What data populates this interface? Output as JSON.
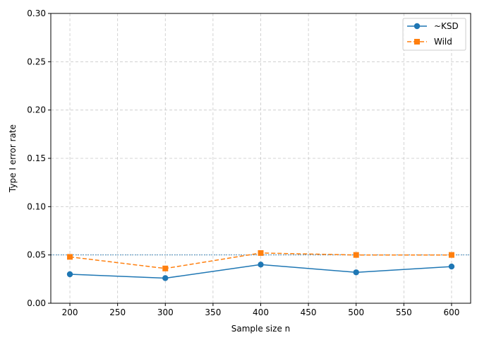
{
  "chart_data": {
    "type": "line",
    "title": "",
    "xlabel": "Sample size n",
    "ylabel": "Type I error rate",
    "xlim": [
      180,
      620
    ],
    "ylim": [
      0.0,
      0.3
    ],
    "x_ticks": [
      200,
      250,
      300,
      350,
      400,
      450,
      500,
      550,
      600
    ],
    "x_tick_labels": [
      "200",
      "250",
      "300",
      "350",
      "400",
      "450",
      "500",
      "550",
      "600"
    ],
    "y_ticks": [
      0.0,
      0.05,
      0.1,
      0.15,
      0.2,
      0.25,
      0.3
    ],
    "y_tick_labels": [
      "0.00",
      "0.05",
      "0.10",
      "0.15",
      "0.20",
      "0.25",
      "0.30"
    ],
    "grid": true,
    "legend_position": "top-right",
    "reference_line": {
      "y": 0.05,
      "color": "#1f77b4"
    },
    "x": [
      200,
      300,
      400,
      500,
      600
    ],
    "series": [
      {
        "name": "~KSD",
        "color": "#1f77b4",
        "marker": "circle",
        "linestyle": "solid",
        "values": [
          0.03,
          0.026,
          0.04,
          0.032,
          0.038
        ]
      },
      {
        "name": "Wild",
        "color": "#ff7f0e",
        "marker": "square",
        "linestyle": "dashed",
        "values": [
          0.048,
          0.036,
          0.052,
          0.05,
          0.05
        ]
      }
    ]
  }
}
